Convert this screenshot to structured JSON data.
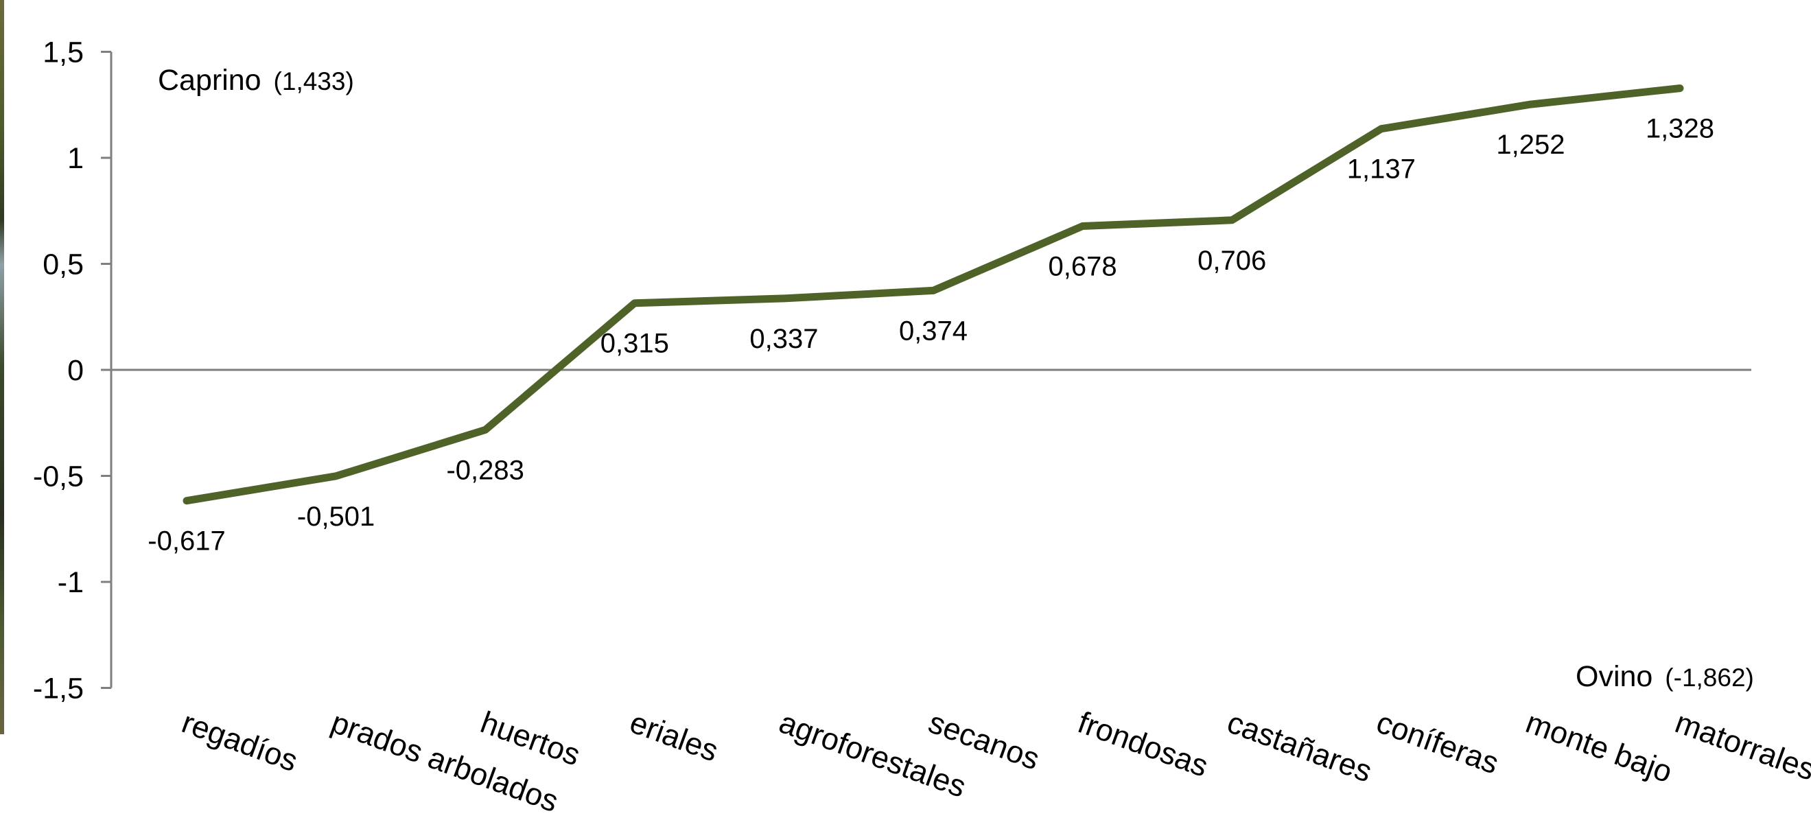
{
  "chart_data": {
    "type": "line",
    "categories": [
      "regadíos",
      "prados arbolados",
      "huertos",
      "eriales",
      "agroforestales",
      "secanos",
      "frondosas",
      "castañares",
      "coníferas",
      "monte bajo",
      "matorrales"
    ],
    "series": [
      {
        "values": [
          -0.617,
          -0.501,
          -0.283,
          0.315,
          0.337,
          0.374,
          0.678,
          0.706,
          1.137,
          1.252,
          1.328
        ],
        "labels": [
          "-0,617",
          "-0,501",
          "-0,283",
          "0,315",
          "0,337",
          "0,374",
          "0,678",
          "0,706",
          "1,137",
          "1,252",
          "1,328"
        ]
      }
    ],
    "yticks": [
      1.5,
      1,
      0.5,
      0,
      -0.5,
      -1,
      -1.5
    ],
    "ytick_labels": [
      "1,5",
      "1",
      "0,5",
      "0",
      "-0,5",
      "-1",
      "-1,5"
    ],
    "ylim": [
      -1.5,
      1.5
    ],
    "annotations": {
      "top_left": {
        "name": "Caprino",
        "value": "(1,433)"
      },
      "bottom_right": {
        "name": "Ovino",
        "value": "(-1,862)"
      }
    },
    "colors": {
      "line": "#4f6228",
      "axis": "#7f7f7f",
      "text": "#000000"
    },
    "grid": false,
    "legend": "none"
  }
}
